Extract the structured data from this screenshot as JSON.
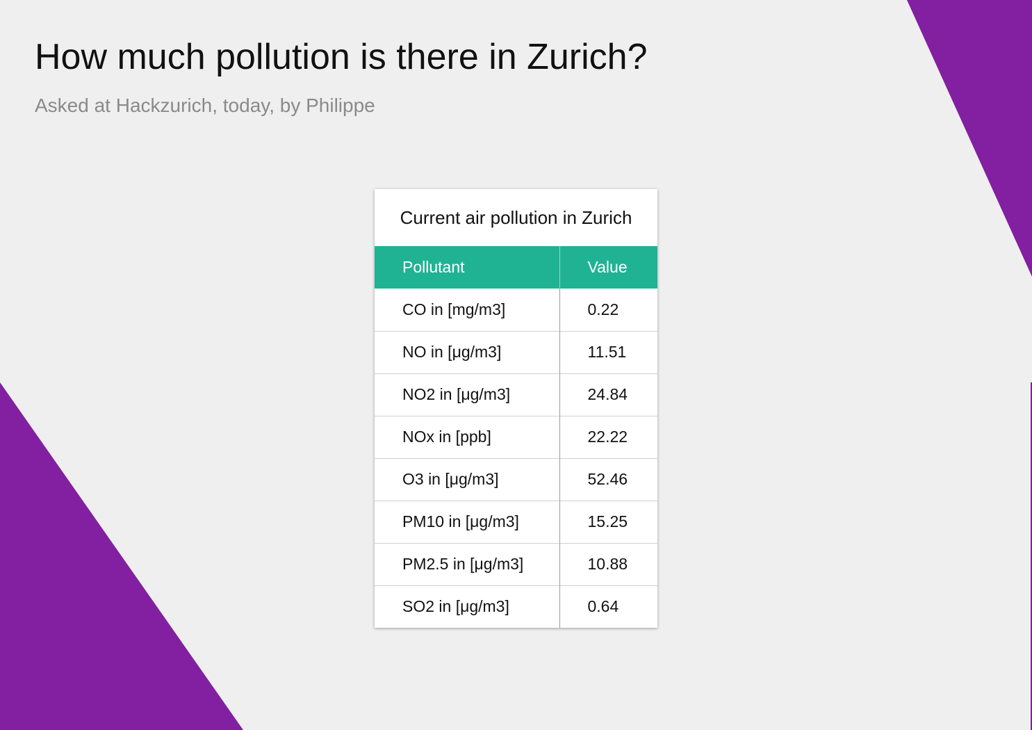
{
  "page": {
    "title": "How much pollution is there in Zurich?",
    "subtitle": "Asked at Hackzurich, today, by Philippe"
  },
  "table_card": {
    "title": "Current air pollution in Zurich",
    "headers": [
      "Pollutant",
      "Value"
    ],
    "rows": [
      {
        "pollutant": "CO in [mg/m3]",
        "value": "0.22"
      },
      {
        "pollutant": "NO in [μg/m3]",
        "value": "11.51"
      },
      {
        "pollutant": "NO2 in [μg/m3]",
        "value": "24.84"
      },
      {
        "pollutant": "NOx in [ppb]",
        "value": "22.22"
      },
      {
        "pollutant": "O3 in [μg/m3]",
        "value": "52.46"
      },
      {
        "pollutant": "PM10 in [μg/m3]",
        "value": "15.25"
      },
      {
        "pollutant": "PM2.5 in [μg/m3]",
        "value": "10.88"
      },
      {
        "pollutant": "SO2 in [μg/m3]",
        "value": "0.64"
      }
    ]
  },
  "colors": {
    "background": "#efefef",
    "accent_purple": "#8220a1",
    "header_green": "#1fb394"
  }
}
